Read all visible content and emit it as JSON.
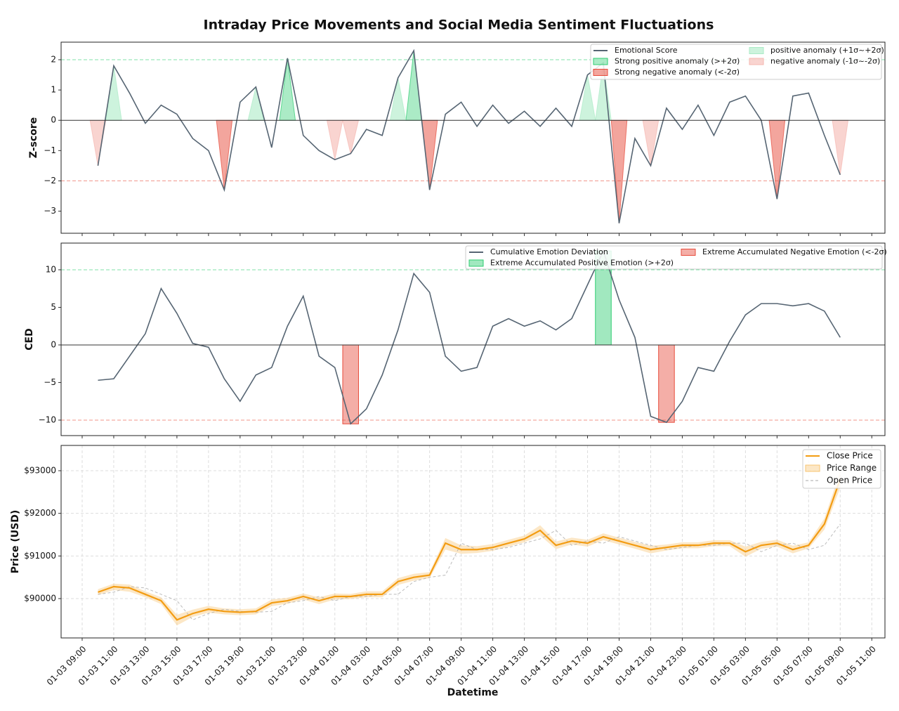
{
  "chart_data": [
    {
      "type": "line",
      "title": "Intraday Price Movements and Social Media Sentiment Fluctuations",
      "ylabel": "Z-score",
      "ylim": [
        -3.73,
        2.58
      ],
      "yticks": [
        {
          "value": -3,
          "label": "−3"
        },
        {
          "value": -2,
          "label": "−2"
        },
        {
          "value": -1,
          "label": "−1"
        },
        0,
        1,
        2
      ],
      "zero_line": true,
      "grid": false,
      "reference_lines": [
        {
          "value": 2,
          "color": "#2ecc71"
        },
        {
          "value": -2,
          "color": "#e74c3c"
        }
      ],
      "series": [
        {
          "name": "Emotional Score",
          "color": "#566573",
          "values": [
            -1.5,
            1.8,
            0.9,
            -0.1,
            0.5,
            0.2,
            -0.6,
            -1.0,
            -2.3,
            0.6,
            1.1,
            -0.9,
            2.05,
            -0.5,
            -1.0,
            -1.3,
            -1.1,
            -0.3,
            -0.5,
            1.4,
            2.3,
            -2.3,
            0.2,
            0.6,
            -0.2,
            0.5,
            -0.1,
            0.3,
            -0.2,
            0.4,
            -0.2,
            1.5,
            1.9,
            -3.4,
            -0.6,
            -1.5,
            0.4,
            -0.3,
            0.5,
            -0.5,
            0.6,
            0.8,
            0.0,
            -2.6,
            0.8,
            0.9,
            -0.5,
            -1.8
          ]
        }
      ],
      "fills": [
        {
          "name": "Strong positive anomaly (>+2σ)",
          "color": "#2ecc71",
          "opacity": 0.4,
          "min": 2
        },
        {
          "name": "Strong negative anomaly (<-2σ)",
          "color": "#e74c3c",
          "opacity": 0.5,
          "max": -2
        },
        {
          "name": "positive anomaly (+1σ~+2σ)",
          "color": "#abebc6",
          "opacity": 0.6,
          "min": 1,
          "max": 2
        },
        {
          "name": "negative anomaly (-1σ~-2σ)",
          "color": "#f5b7b1",
          "opacity": 0.6,
          "min": -2,
          "max": -1
        }
      ]
    },
    {
      "type": "line",
      "ylabel": "CED",
      "ylim": [
        -12.06,
        13.55
      ],
      "yticks": [
        {
          "value": -10,
          "label": "−10"
        },
        {
          "value": -5,
          "label": "−5"
        },
        0,
        5,
        10
      ],
      "zero_line": true,
      "grid": false,
      "reference_lines": [
        {
          "value": 10,
          "color": "#2ecc71"
        },
        {
          "value": -10,
          "color": "#e74c3c"
        }
      ],
      "series": [
        {
          "name": "Cumulative Emotion Deviation",
          "color": "#566573",
          "values": [
            -4.7,
            -4.5,
            -1.5,
            1.5,
            7.5,
            4.2,
            0.2,
            -0.3,
            -4.5,
            -7.5,
            -4.0,
            -3.0,
            2.5,
            6.5,
            -1.5,
            -3.0,
            -10.5,
            -8.5,
            -4.0,
            2.0,
            9.5,
            7.0,
            -1.5,
            -3.5,
            -3.0,
            2.5,
            3.5,
            2.5,
            3.2,
            2.0,
            3.5,
            8.0,
            12.5,
            6.0,
            1.0,
            -9.5,
            -10.3,
            -7.5,
            -3.0,
            -3.5,
            0.5,
            4.0,
            5.5,
            5.5,
            5.2,
            5.5,
            4.5,
            1.0
          ]
        }
      ],
      "fills": [
        {
          "name": "Extreme Accumulated Positive Emotion (>+2σ)",
          "color": "#2ecc71",
          "opacity": 0.45,
          "min": 10
        },
        {
          "name": "Extreme Accumulated Negative Emotion (<-2σ)",
          "color": "#e74c3c",
          "opacity": 0.45,
          "max": -10
        }
      ]
    },
    {
      "type": "line",
      "xlabel": "Datetime",
      "ylabel": "Price (USD)",
      "grid": true,
      "x": [
        "01-03 10:00",
        "01-03 11:00",
        "01-03 12:00",
        "01-03 13:00",
        "01-03 14:00",
        "01-03 15:00",
        "01-03 16:00",
        "01-03 17:00",
        "01-03 18:00",
        "01-03 19:00",
        "01-03 20:00",
        "01-03 21:00",
        "01-03 22:00",
        "01-03 23:00",
        "01-04 00:00",
        "01-04 01:00",
        "01-04 02:00",
        "01-04 03:00",
        "01-04 04:00",
        "01-04 05:00",
        "01-04 06:00",
        "01-04 07:00",
        "01-04 08:00",
        "01-04 09:00",
        "01-04 10:00",
        "01-04 11:00",
        "01-04 12:00",
        "01-04 13:00",
        "01-04 14:00",
        "01-04 15:00",
        "01-04 16:00",
        "01-04 17:00",
        "01-04 18:00",
        "01-04 19:00",
        "01-04 20:00",
        "01-04 21:00",
        "01-04 22:00",
        "01-04 23:00",
        "01-05 00:00",
        "01-05 01:00",
        "01-05 02:00",
        "01-05 03:00",
        "01-05 04:00",
        "01-05 05:00",
        "01-05 06:00",
        "01-05 07:00",
        "01-05 08:00",
        "01-05 09:00"
      ],
      "xlim": [
        "01-03 07:40",
        "01-05 11:50"
      ],
      "xticks": [
        "01-03 09:00",
        "01-03 11:00",
        "01-03 13:00",
        "01-03 15:00",
        "01-03 17:00",
        "01-03 19:00",
        "01-03 21:00",
        "01-03 23:00",
        "01-04 01:00",
        "01-04 03:00",
        "01-04 05:00",
        "01-04 07:00",
        "01-04 09:00",
        "01-04 11:00",
        "01-04 13:00",
        "01-04 15:00",
        "01-04 17:00",
        "01-04 19:00",
        "01-04 21:00",
        "01-04 23:00",
        "01-05 01:00",
        "01-05 03:00",
        "01-05 05:00",
        "01-05 07:00",
        "01-05 09:00",
        "01-05 11:00"
      ],
      "ylim": [
        89077,
        93593
      ],
      "yticks": [
        {
          "value": 90000,
          "label": "$90000"
        },
        {
          "value": 91000,
          "label": "$91000"
        },
        {
          "value": 92000,
          "label": "$92000"
        },
        {
          "value": 93000,
          "label": "$93000"
        }
      ],
      "series": [
        {
          "name": "Close Price",
          "color": "#f39c12",
          "values": [
            90150,
            90280,
            90250,
            90100,
            89950,
            89500,
            89650,
            89750,
            89700,
            89680,
            89700,
            89900,
            89950,
            90050,
            89950,
            90050,
            90050,
            90100,
            90100,
            90400,
            90500,
            90550,
            91300,
            91150,
            91150,
            91200,
            91300,
            91400,
            91600,
            91250,
            91350,
            91300,
            91450,
            91350,
            91250,
            91150,
            91200,
            91250,
            91250,
            91300,
            91300,
            91100,
            91250,
            91300,
            91150,
            91250,
            91750,
            92800
          ]
        },
        {
          "name": "Price Range",
          "color": "#f8c471",
          "high": [
            90220,
            90350,
            90330,
            90170,
            90030,
            89620,
            89740,
            89830,
            89770,
            89750,
            89770,
            89980,
            90020,
            90120,
            90030,
            90120,
            90110,
            90170,
            90170,
            90480,
            90580,
            90620,
            91420,
            91250,
            91230,
            91280,
            91380,
            91480,
            91720,
            91340,
            91430,
            91380,
            91530,
            91430,
            91330,
            91240,
            91270,
            91320,
            91320,
            91370,
            91370,
            91220,
            91330,
            91380,
            91240,
            91320,
            91880,
            92980
          ],
          "low": [
            90080,
            90200,
            90160,
            90030,
            89870,
            89370,
            89570,
            89670,
            89630,
            89610,
            89630,
            89820,
            89880,
            89980,
            89870,
            89980,
            89990,
            90030,
            90030,
            90320,
            90420,
            90480,
            91150,
            91050,
            91070,
            91120,
            91220,
            91320,
            91480,
            91160,
            91270,
            91220,
            91370,
            91270,
            91170,
            91060,
            91130,
            91180,
            91180,
            91230,
            91230,
            90980,
            91170,
            91220,
            91060,
            91180,
            91620,
            92600
          ]
        },
        {
          "name": "Open Price",
          "color": "#aaaaaa",
          "dash": true,
          "values": [
            90100,
            90150,
            90280,
            90250,
            90100,
            89950,
            89500,
            89650,
            89750,
            89700,
            89680,
            89700,
            89900,
            89950,
            90050,
            89950,
            90050,
            90050,
            90100,
            90100,
            90400,
            90500,
            90550,
            91300,
            91150,
            91150,
            91200,
            91300,
            91400,
            91600,
            91250,
            91350,
            91300,
            91450,
            91350,
            91250,
            91150,
            91200,
            91250,
            91250,
            91300,
            91300,
            91100,
            91250,
            91300,
            91150,
            91250,
            91750
          ]
        }
      ]
    }
  ]
}
